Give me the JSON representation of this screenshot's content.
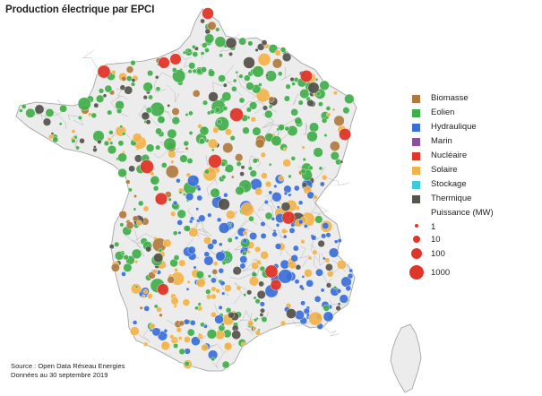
{
  "title": "Production électrique par EPCI",
  "legend": {
    "items": [
      {
        "label": "Biomasse",
        "color": "#b07a3e"
      },
      {
        "label": "Eolien",
        "color": "#3fae49"
      },
      {
        "label": "Hydraulique",
        "color": "#3a6fd8"
      },
      {
        "label": "Marin",
        "color": "#8e4f9a"
      },
      {
        "label": "Nucléaire",
        "color": "#e0362a"
      },
      {
        "label": "Solaire",
        "color": "#f2b24a"
      },
      {
        "label": "Stockage",
        "color": "#3ec9df"
      },
      {
        "label": "Thermique",
        "color": "#55534b"
      }
    ],
    "size_title": "Puissance (MW)",
    "sizes": [
      "1",
      "10",
      "100",
      "1000"
    ]
  },
  "source": {
    "line1": "Source : Open Data Réseau Energies",
    "line2": "Données au 30 septembre 2019"
  },
  "map_style": {
    "land": "#ececec",
    "border": "#9c9c9c",
    "dominant_sources": {
      "north": "Eolien",
      "alps_pyrenees_massif_central": "Hydraulique",
      "south_west_and_south": "Solaire",
      "reactor_sites": "Nucléaire"
    }
  }
}
